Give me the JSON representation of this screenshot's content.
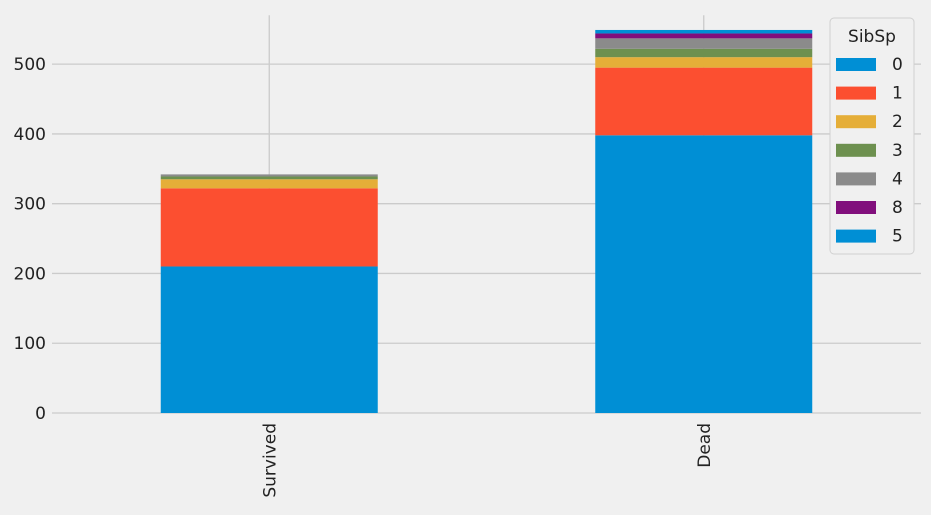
{
  "chart_data": {
    "type": "bar",
    "stacked": true,
    "title": "",
    "xlabel": "",
    "ylabel": "",
    "categories": [
      "Survived",
      "Dead"
    ],
    "ylim": [
      0,
      570
    ],
    "yticks": [
      0,
      100,
      200,
      300,
      400,
      500
    ],
    "grid": true,
    "legend_title": "SibSp",
    "legend_position": "top-right",
    "series": [
      {
        "name": "0",
        "color": "#008fd5",
        "values": [
          210,
          398
        ]
      },
      {
        "name": "1",
        "color": "#fc4f30",
        "values": [
          112,
          97
        ]
      },
      {
        "name": "2",
        "color": "#e5ae38",
        "values": [
          13,
          15
        ]
      },
      {
        "name": "3",
        "color": "#6d904f",
        "values": [
          4,
          12
        ]
      },
      {
        "name": "4",
        "color": "#8b8b8b",
        "values": [
          3,
          15
        ]
      },
      {
        "name": "8",
        "color": "#810f7c",
        "values": [
          0,
          7
        ]
      },
      {
        "name": "5",
        "color": "#008fd5",
        "values": [
          0,
          5
        ]
      }
    ]
  }
}
